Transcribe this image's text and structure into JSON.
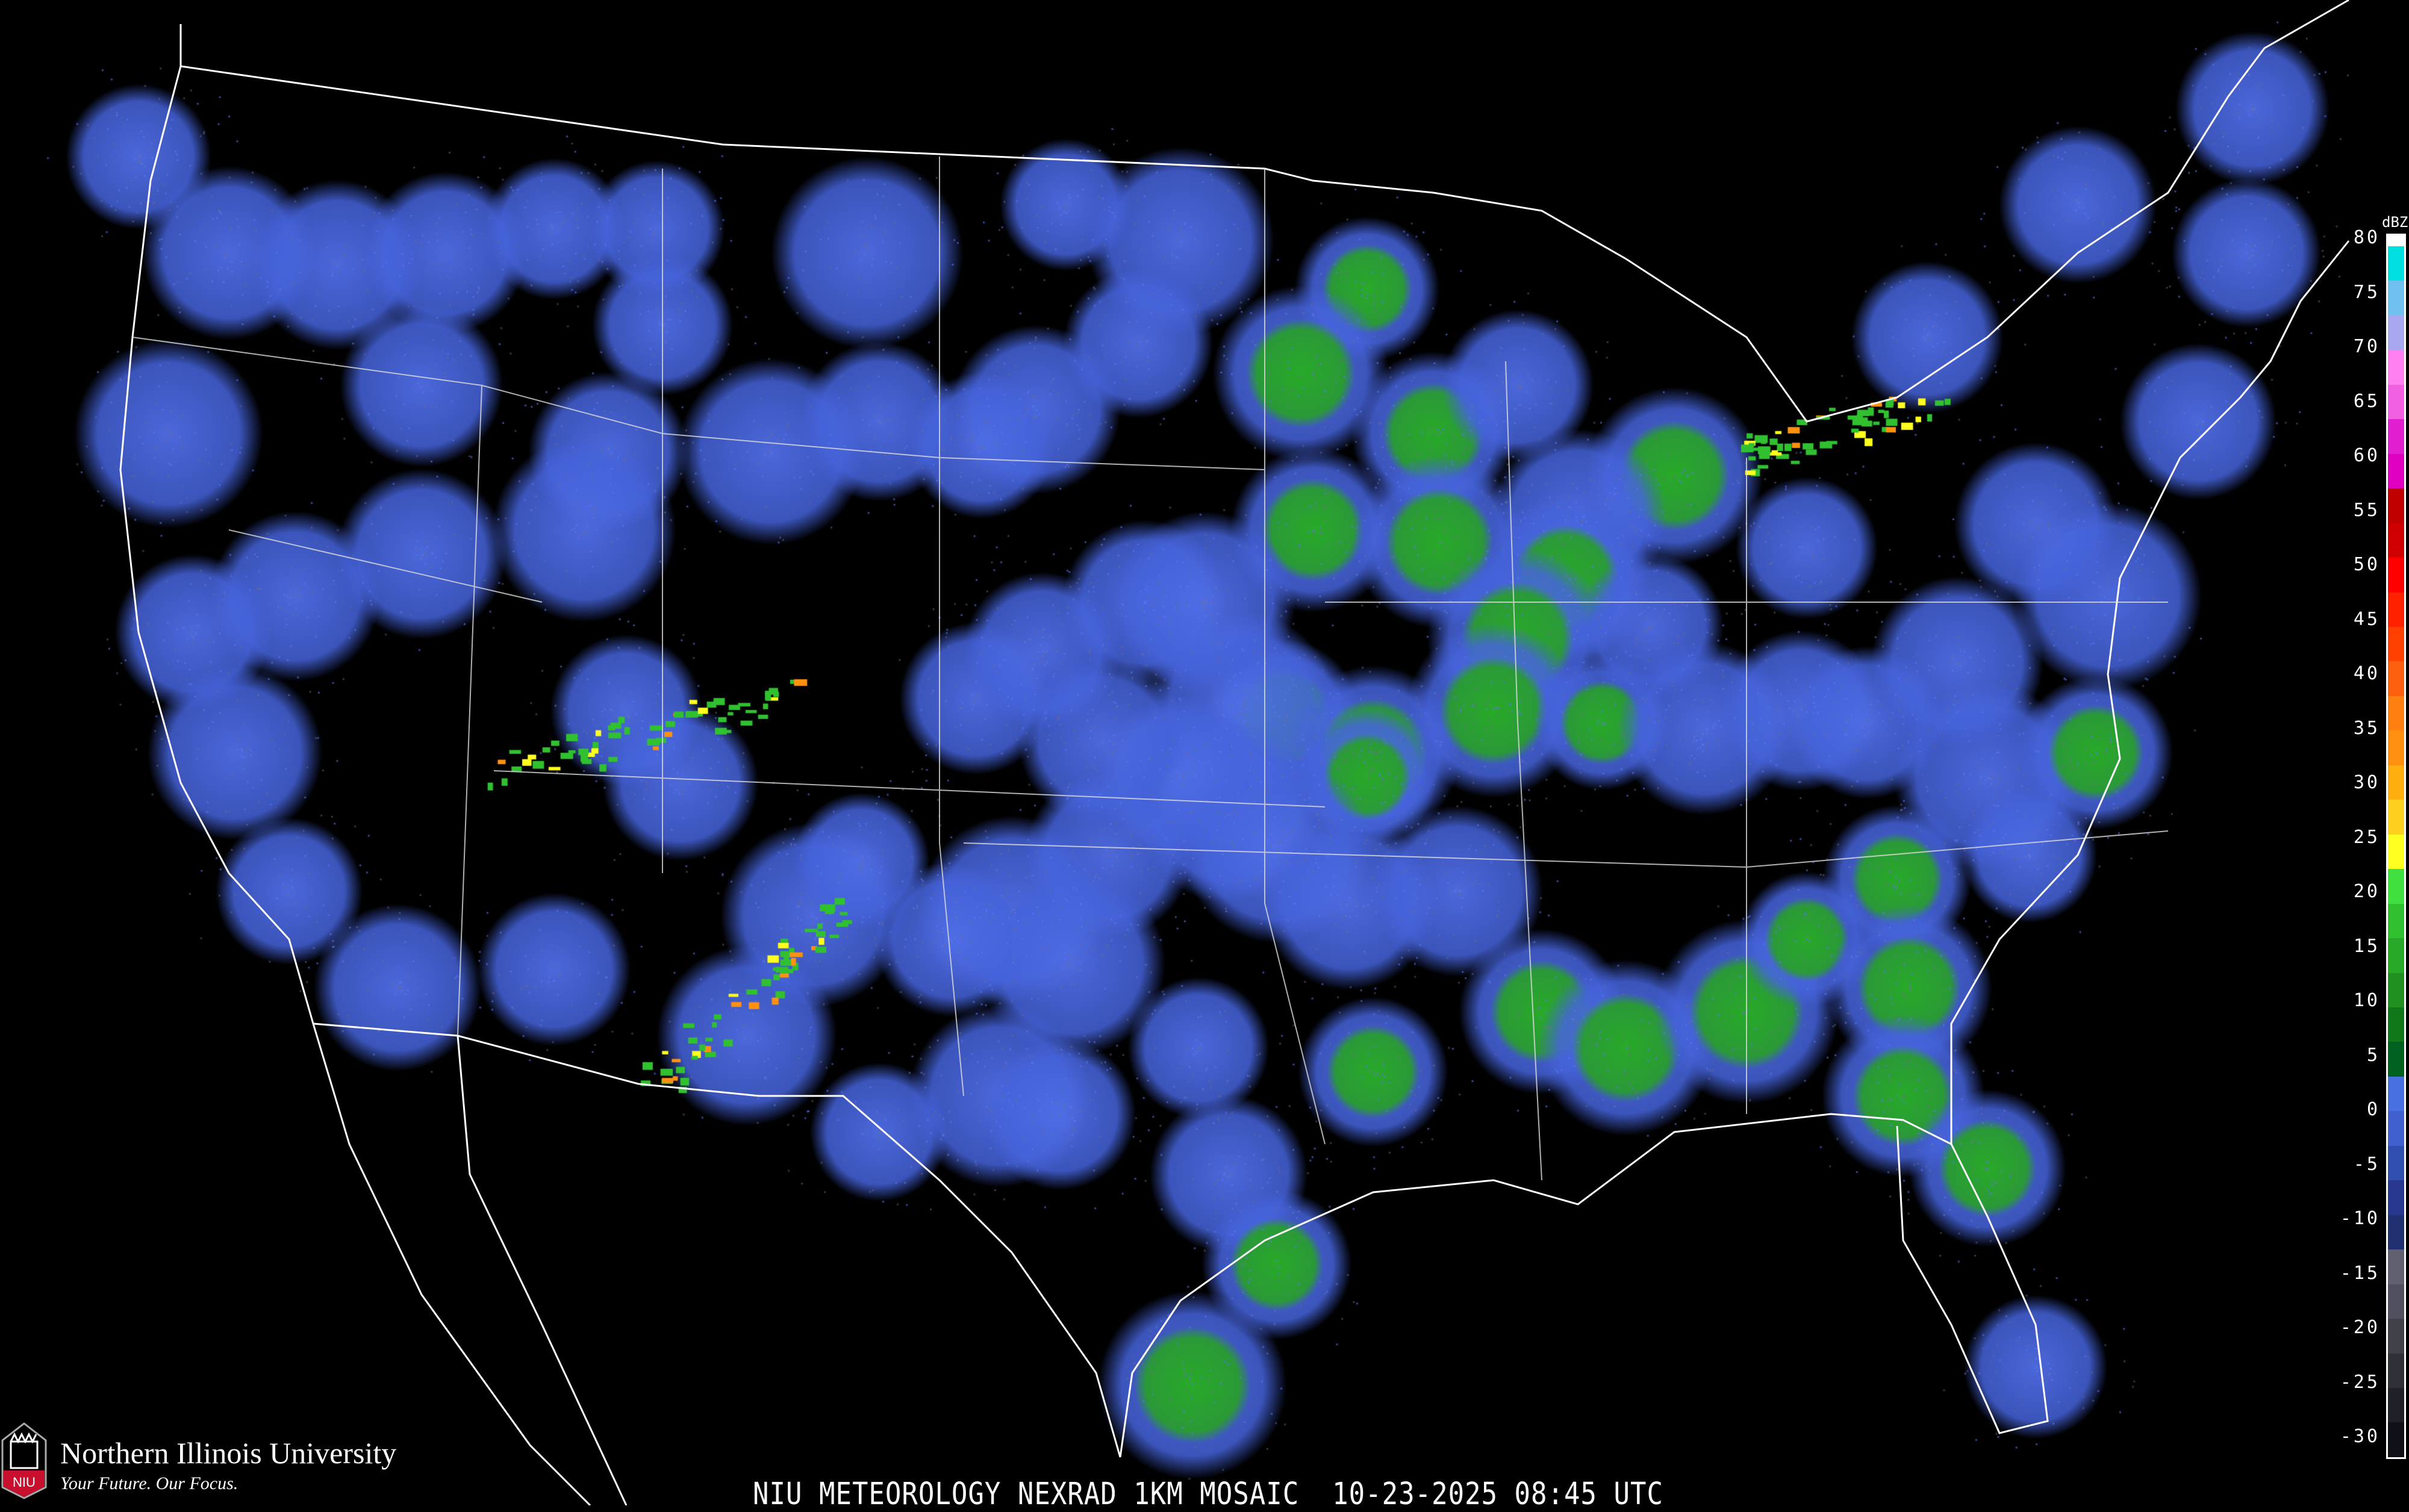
{
  "title": "NIU METEOROLOGY NEXRAD 1KM MOSAIC  10-23-2025 08:45 UTC",
  "logo": {
    "name": "Northern Illinois University",
    "tagline": "Your Future. Our Focus.",
    "badge": "NIU"
  },
  "legend": {
    "unit": "dBZ",
    "labels": [
      "80",
      "75",
      "70",
      "65",
      "60",
      "55",
      "50",
      "45",
      "40",
      "35",
      "30",
      "25",
      "20",
      "15",
      "10",
      "5",
      "0",
      "-5",
      "-10",
      "-15",
      "-20",
      "-25",
      "-30"
    ],
    "colors": [
      "#ffffff",
      "#00e0e0",
      "#70c0f0",
      "#a8a8f0",
      "#ff80f0",
      "#f060e0",
      "#e020d0",
      "#e000c0",
      "#c00000",
      "#d00000",
      "#ff0000",
      "#ff2000",
      "#ff4000",
      "#ff6010",
      "#ff8010",
      "#ff9010",
      "#ffb010",
      "#ffd020",
      "#ffff20",
      "#40e040",
      "#30c030",
      "#28a828",
      "#209020",
      "#107818",
      "#006020",
      "#4870e0",
      "#4060d0",
      "#3050b0",
      "#283890",
      "#203070",
      "#606070",
      "#505060",
      "#404048",
      "#303038",
      "#202028",
      "#101018"
    ]
  },
  "colors": {
    "background": "#000000",
    "light_echo": "#4a6ee0",
    "moderate_echo": "#2cab2c",
    "border": "#ffffff",
    "roads": "#8b4513"
  }
}
